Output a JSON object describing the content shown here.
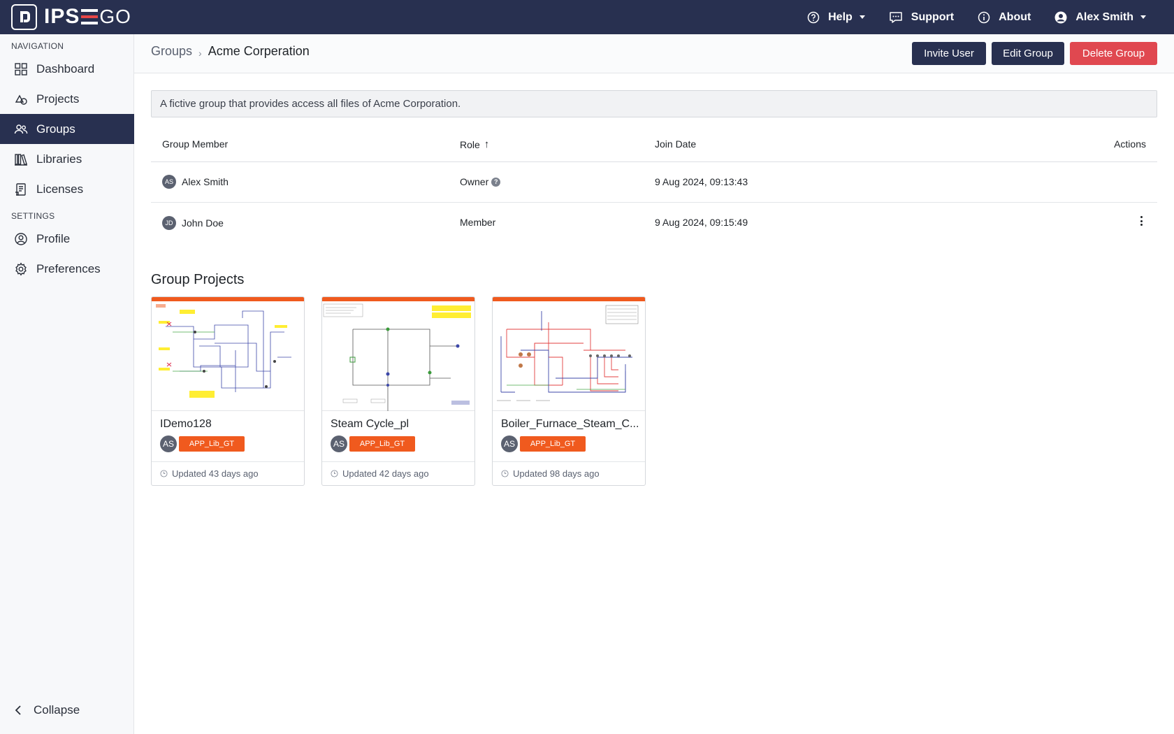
{
  "app": {
    "logo_text_left": "IPS",
    "logo_text_right": "GO"
  },
  "topnav": {
    "help": "Help",
    "support": "Support",
    "about": "About",
    "user": "Alex Smith"
  },
  "sidebar": {
    "nav_heading": "NAVIGATION",
    "nav_items": [
      {
        "label": "Dashboard",
        "icon": "dashboard-icon"
      },
      {
        "label": "Projects",
        "icon": "projects-icon"
      },
      {
        "label": "Groups",
        "icon": "groups-icon",
        "active": true
      },
      {
        "label": "Libraries",
        "icon": "libraries-icon"
      },
      {
        "label": "Licenses",
        "icon": "licenses-icon"
      }
    ],
    "settings_heading": "SETTINGS",
    "settings_items": [
      {
        "label": "Profile",
        "icon": "profile-icon"
      },
      {
        "label": "Preferences",
        "icon": "gear-icon"
      }
    ],
    "collapse": "Collapse"
  },
  "header": {
    "breadcrumb_parent": "Groups",
    "breadcrumb_sep": "›",
    "title": "Acme Corperation",
    "invite_user": "Invite User",
    "edit_group": "Edit Group",
    "delete_group": "Delete Group"
  },
  "description": "A fictive group that provides access all files of Acme Corporation.",
  "members_table": {
    "columns": {
      "member": "Group Member",
      "role": "Role",
      "role_sort": "↑",
      "join_date": "Join Date",
      "actions": "Actions"
    },
    "rows": [
      {
        "initials": "AS",
        "name": "Alex Smith",
        "role": "Owner",
        "role_help": "?",
        "join_date": "9 Aug 2024, 09:13:43"
      },
      {
        "initials": "JD",
        "name": "John Doe",
        "role": "Member",
        "join_date": "9 Aug 2024, 09:15:49"
      }
    ]
  },
  "projects": {
    "title": "Group Projects",
    "cards": [
      {
        "name": "IDemo128",
        "initials": "AS",
        "tag": "APP_Lib_GT",
        "updated": "Updated 43 days ago"
      },
      {
        "name": "Steam Cycle_pl",
        "initials": "AS",
        "tag": "APP_Lib_GT",
        "updated": "Updated 42 days ago"
      },
      {
        "name": "Boiler_Furnace_Steam_C...",
        "initials": "AS",
        "tag": "APP_Lib_GT",
        "updated": "Updated 98 days ago"
      }
    ]
  },
  "colors": {
    "navy": "#283050",
    "danger": "#e04850",
    "accent": "#f05a1e"
  }
}
